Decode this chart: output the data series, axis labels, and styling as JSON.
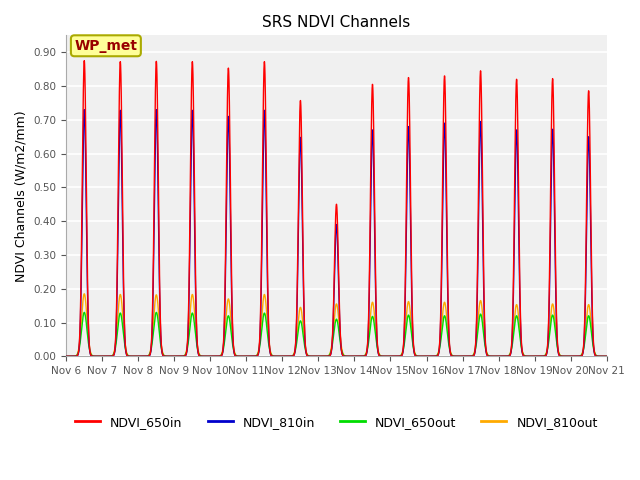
{
  "title": "SRS NDVI Channels",
  "ylabel": "NDVI Channels (W/m2/mm)",
  "ylim": [
    0.0,
    0.95
  ],
  "yticks": [
    0.0,
    0.1,
    0.2,
    0.3,
    0.4,
    0.5,
    0.6,
    0.7,
    0.8,
    0.9
  ],
  "fig_bg_color": "#ffffff",
  "plot_bg_color": "#f0f0f0",
  "grid_color": "#ffffff",
  "line_colors": {
    "NDVI_650in": "#ff0000",
    "NDVI_810in": "#0000cc",
    "NDVI_650out": "#00dd00",
    "NDVI_810out": "#ffaa00"
  },
  "annotation_text": "WP_met",
  "annotation_box_color": "#ffff99",
  "annotation_border_color": "#aaaa00",
  "n_days": 15,
  "start_day": 6,
  "peak_650in": [
    0.875,
    0.872,
    0.873,
    0.872,
    0.853,
    0.872,
    0.757,
    0.45,
    0.805,
    0.825,
    0.83,
    0.845,
    0.82,
    0.822,
    0.786
  ],
  "peak_810in": [
    0.73,
    0.728,
    0.73,
    0.728,
    0.71,
    0.728,
    0.648,
    0.39,
    0.67,
    0.68,
    0.69,
    0.695,
    0.67,
    0.672,
    0.65
  ],
  "peak_650out": [
    0.13,
    0.128,
    0.13,
    0.128,
    0.12,
    0.128,
    0.105,
    0.11,
    0.118,
    0.122,
    0.12,
    0.125,
    0.12,
    0.122,
    0.12
  ],
  "peak_810out": [
    0.185,
    0.183,
    0.182,
    0.183,
    0.17,
    0.183,
    0.145,
    0.155,
    0.16,
    0.162,
    0.16,
    0.165,
    0.153,
    0.155,
    0.153
  ],
  "figsize": [
    6.4,
    4.8
  ],
  "dpi": 100,
  "spike_sigma": 0.055,
  "spike_sigma_out": 0.075
}
